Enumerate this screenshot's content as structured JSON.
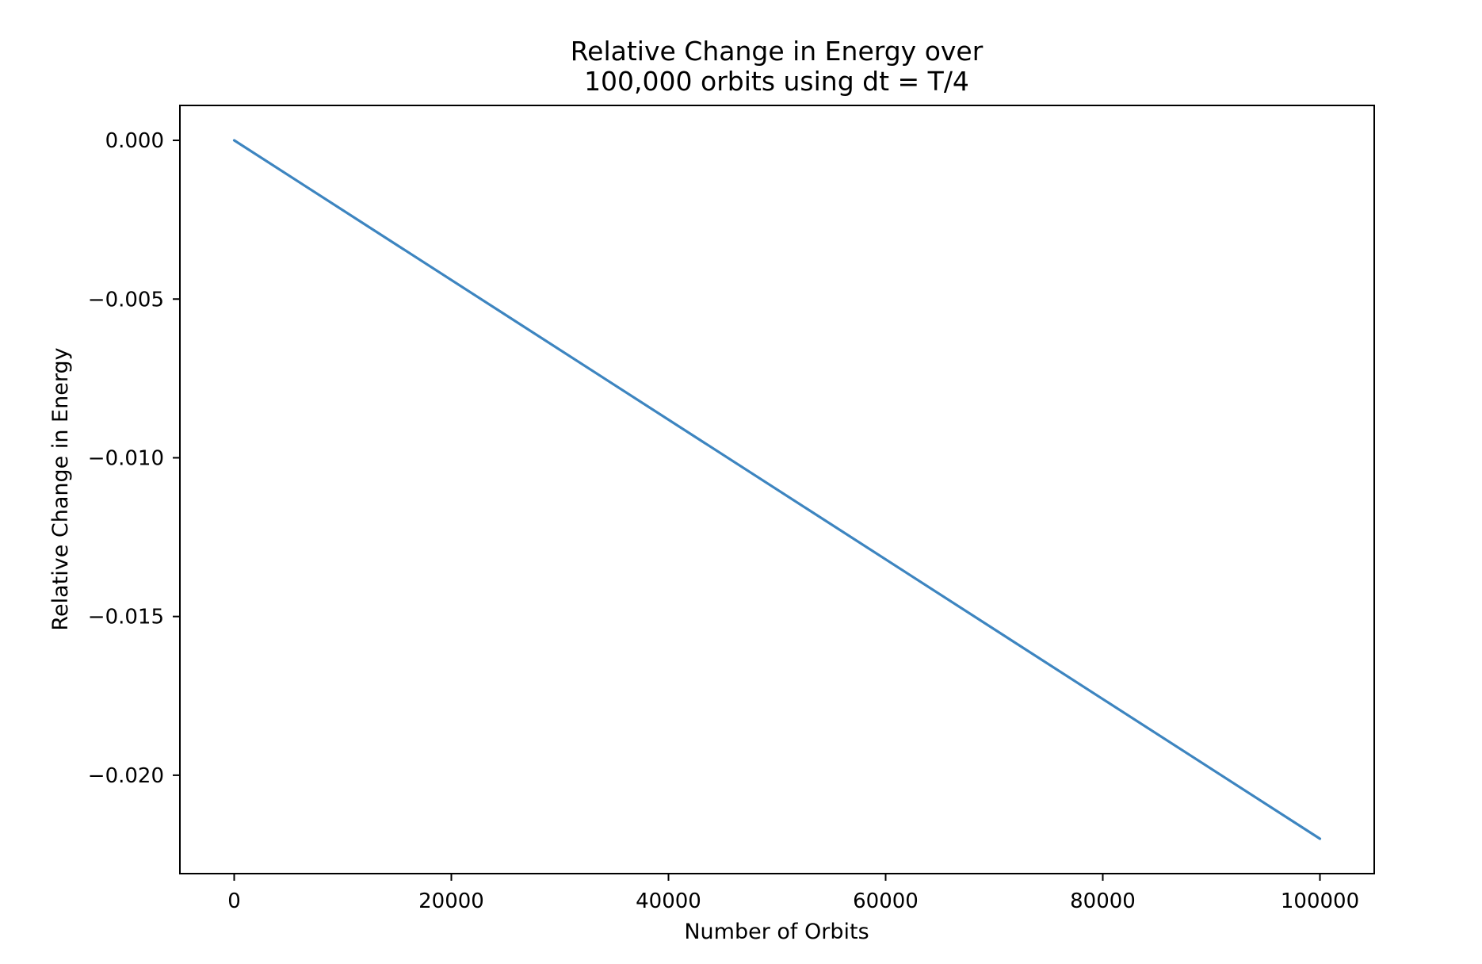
{
  "chart_data": {
    "type": "line",
    "title_lines": [
      "Relative Change in Energy over",
      "100,000 orbits using dt = T/4"
    ],
    "xlabel": "Number of Orbits",
    "ylabel": "Relative Change in Energy",
    "xlim": [
      -5000,
      105000
    ],
    "ylim": [
      -0.0231,
      0.0011
    ],
    "x_ticks": [
      0,
      20000,
      40000,
      60000,
      80000,
      100000
    ],
    "x_tick_labels": [
      "0",
      "20000",
      "40000",
      "60000",
      "80000",
      "100000"
    ],
    "y_ticks": [
      0.0,
      -0.005,
      -0.01,
      -0.015,
      -0.02
    ],
    "y_tick_labels": [
      "0.000",
      "−0.005",
      "−0.010",
      "−0.015",
      "−0.020"
    ],
    "grid": false,
    "legend": "none",
    "series": [
      {
        "color": "#3d85c0",
        "x": [
          0,
          100000
        ],
        "y": [
          0.0,
          -0.022
        ]
      }
    ]
  }
}
